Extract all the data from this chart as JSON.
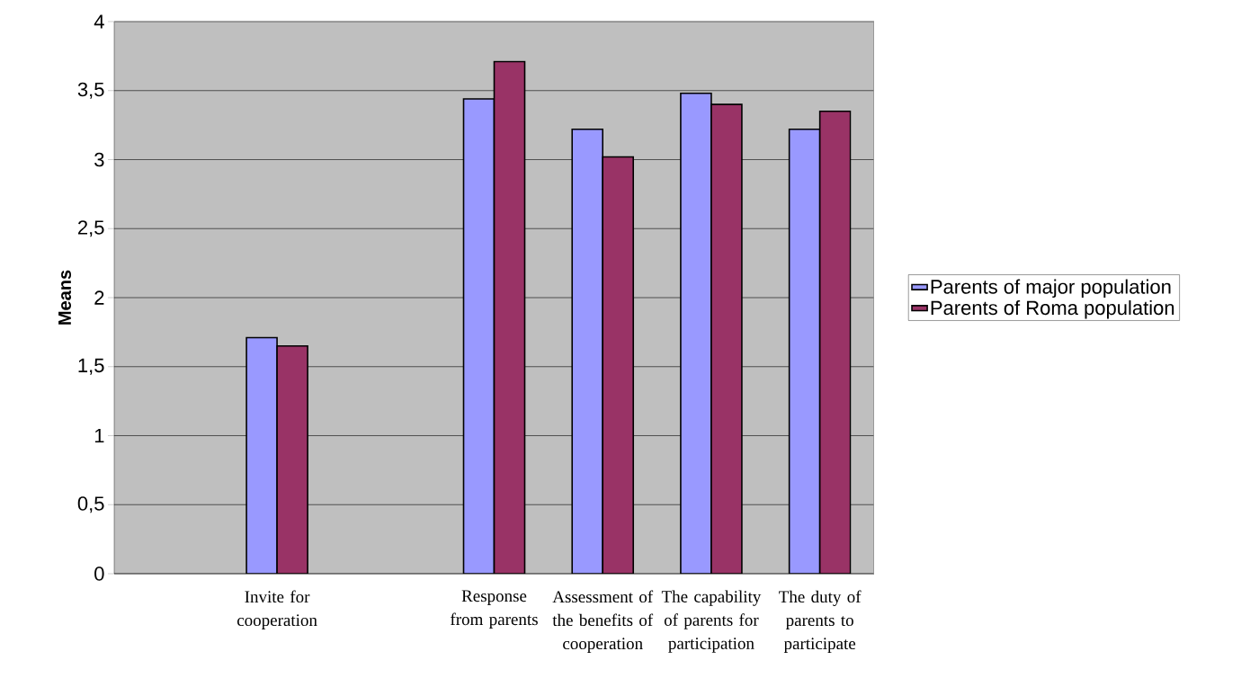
{
  "chart_data": {
    "type": "bar",
    "ylabel": "Means",
    "categories": [
      null,
      "Invite for cooperation",
      null,
      "Response from parents",
      "Assessment of the benefits of cooperation",
      "The capability of parents for participation",
      "The duty of parents to participate"
    ],
    "series": [
      {
        "name": "Parents of major population",
        "color": "#9999ff",
        "values": [
          null,
          1.71,
          null,
          3.44,
          3.22,
          3.48,
          3.22
        ]
      },
      {
        "name": "Parents of Roma population",
        "color": "#993366",
        "values": [
          null,
          1.65,
          null,
          3.71,
          3.02,
          3.4,
          3.35
        ]
      }
    ],
    "ylim": [
      0,
      4
    ],
    "yticks": [
      {
        "value": 0,
        "label": "0"
      },
      {
        "value": 0.5,
        "label": "0,5"
      },
      {
        "value": 1,
        "label": "1"
      },
      {
        "value": 1.5,
        "label": "1,5"
      },
      {
        "value": 2,
        "label": "2"
      },
      {
        "value": 2.5,
        "label": "2,5"
      },
      {
        "value": 3,
        "label": "3"
      },
      {
        "value": 3.5,
        "label": "3,5"
      },
      {
        "value": 4,
        "label": "4"
      }
    ],
    "grid": "y",
    "legend": "right"
  }
}
